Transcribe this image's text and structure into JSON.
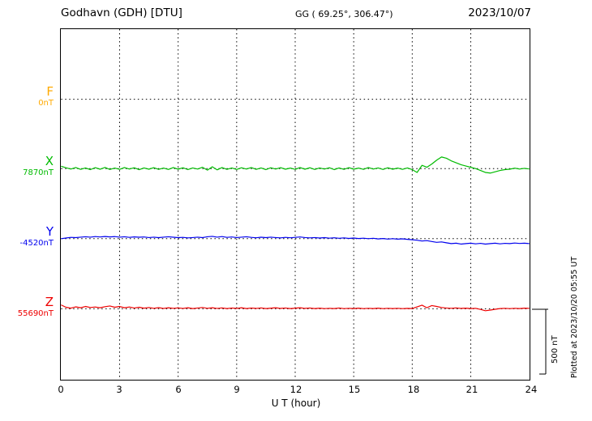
{
  "header": {
    "station": "Godhavn (GDH)  [DTU]",
    "coords": "GG ( 69.25°, 306.47°)",
    "date": "2023/10/07"
  },
  "footnote": "Plotted at 2023/10/20 05:55 UT",
  "chart_data": {
    "type": "line",
    "title": "Godhavn (GDH) [DTU] magnetogram 2023/10/07",
    "xlabel": "U T (hour)",
    "xlim": [
      0,
      24
    ],
    "xticks": [
      0,
      3,
      6,
      9,
      12,
      15,
      18,
      21,
      24
    ],
    "grid": "dotted vertical at 3h intervals, dotted horizontal baseline per component",
    "scale_bar_nT": 500,
    "scale_bar_label": "500 nT",
    "sample_step_hours": 0.25,
    "series": [
      {
        "name": "F",
        "color": "#ffaa00",
        "baseline_nT": 0,
        "baseline_label": "0nT",
        "offsets_nT": []
      },
      {
        "name": "X",
        "color": "#00bb00",
        "baseline_nT": 7870,
        "baseline_label": "7870nT",
        "offsets_nT": [
          18,
          6,
          -4,
          8,
          -6,
          5,
          -8,
          7,
          -5,
          9,
          -7,
          4,
          -6,
          8,
          -4,
          6,
          -9,
          5,
          -5,
          7,
          -6,
          4,
          -7,
          8,
          -5,
          6,
          -8,
          5,
          -4,
          10,
          -12,
          14,
          -10,
          8,
          -6,
          5,
          -7,
          6,
          -4,
          8,
          -6,
          5,
          -8,
          6,
          -4,
          7,
          -5,
          4,
          -6,
          8,
          -5,
          6,
          -7,
          5,
          -4,
          6,
          -8,
          5,
          -6,
          7,
          -5,
          4,
          -6,
          8,
          -4,
          5,
          -7,
          6,
          -5,
          4,
          -6,
          5,
          -8,
          -30,
          25,
          10,
          35,
          65,
          90,
          80,
          60,
          45,
          30,
          20,
          10,
          0,
          -15,
          -30,
          -35,
          -25,
          -15,
          -8,
          -5,
          3,
          -4,
          2,
          -3
        ]
      },
      {
        "name": "Y",
        "color": "#0000ee",
        "baseline_nT": -4520,
        "baseline_label": "-4520nT",
        "offsets_nT": [
          0,
          5,
          10,
          8,
          12,
          15,
          12,
          16,
          13,
          17,
          14,
          16,
          12,
          15,
          10,
          14,
          11,
          13,
          9,
          12,
          8,
          12,
          15,
          11,
          8,
          10,
          6,
          9,
          12,
          8,
          15,
          18,
          12,
          16,
          10,
          13,
          9,
          12,
          15,
          10,
          7,
          11,
          8,
          12,
          9,
          6,
          10,
          7,
          10,
          13,
          9,
          6,
          9,
          5,
          8,
          4,
          7,
          3,
          6,
          2,
          5,
          1,
          4,
          0,
          3,
          -2,
          1,
          -3,
          0,
          -4,
          -1,
          -5,
          -8,
          -12,
          -18,
          -15,
          -22,
          -28,
          -25,
          -32,
          -38,
          -35,
          -42,
          -38,
          -35,
          -40,
          -36,
          -42,
          -38,
          -35,
          -40,
          -36,
          -38,
          -34,
          -37,
          -35,
          -38
        ]
      },
      {
        "name": "Z",
        "color": "#ee0000",
        "baseline_nT": 55690,
        "baseline_label": "55690nT",
        "offsets_nT": [
          30,
          12,
          5,
          15,
          8,
          18,
          10,
          14,
          8,
          16,
          22,
          12,
          18,
          8,
          14,
          6,
          12,
          5,
          10,
          4,
          9,
          3,
          8,
          4,
          7,
          3,
          8,
          2,
          6,
          10,
          4,
          8,
          3,
          7,
          2,
          6,
          3,
          8,
          2,
          6,
          3,
          7,
          2,
          5,
          8,
          3,
          6,
          2,
          5,
          8,
          3,
          6,
          2,
          5,
          1,
          4,
          2,
          6,
          1,
          4,
          2,
          5,
          1,
          4,
          2,
          5,
          1,
          4,
          2,
          4,
          1,
          3,
          2,
          15,
          28,
          8,
          25,
          18,
          10,
          6,
          4,
          7,
          3,
          5,
          2,
          4,
          -5,
          -15,
          -10,
          -4,
          2,
          4,
          1,
          4,
          2,
          5,
          3
        ]
      }
    ]
  }
}
